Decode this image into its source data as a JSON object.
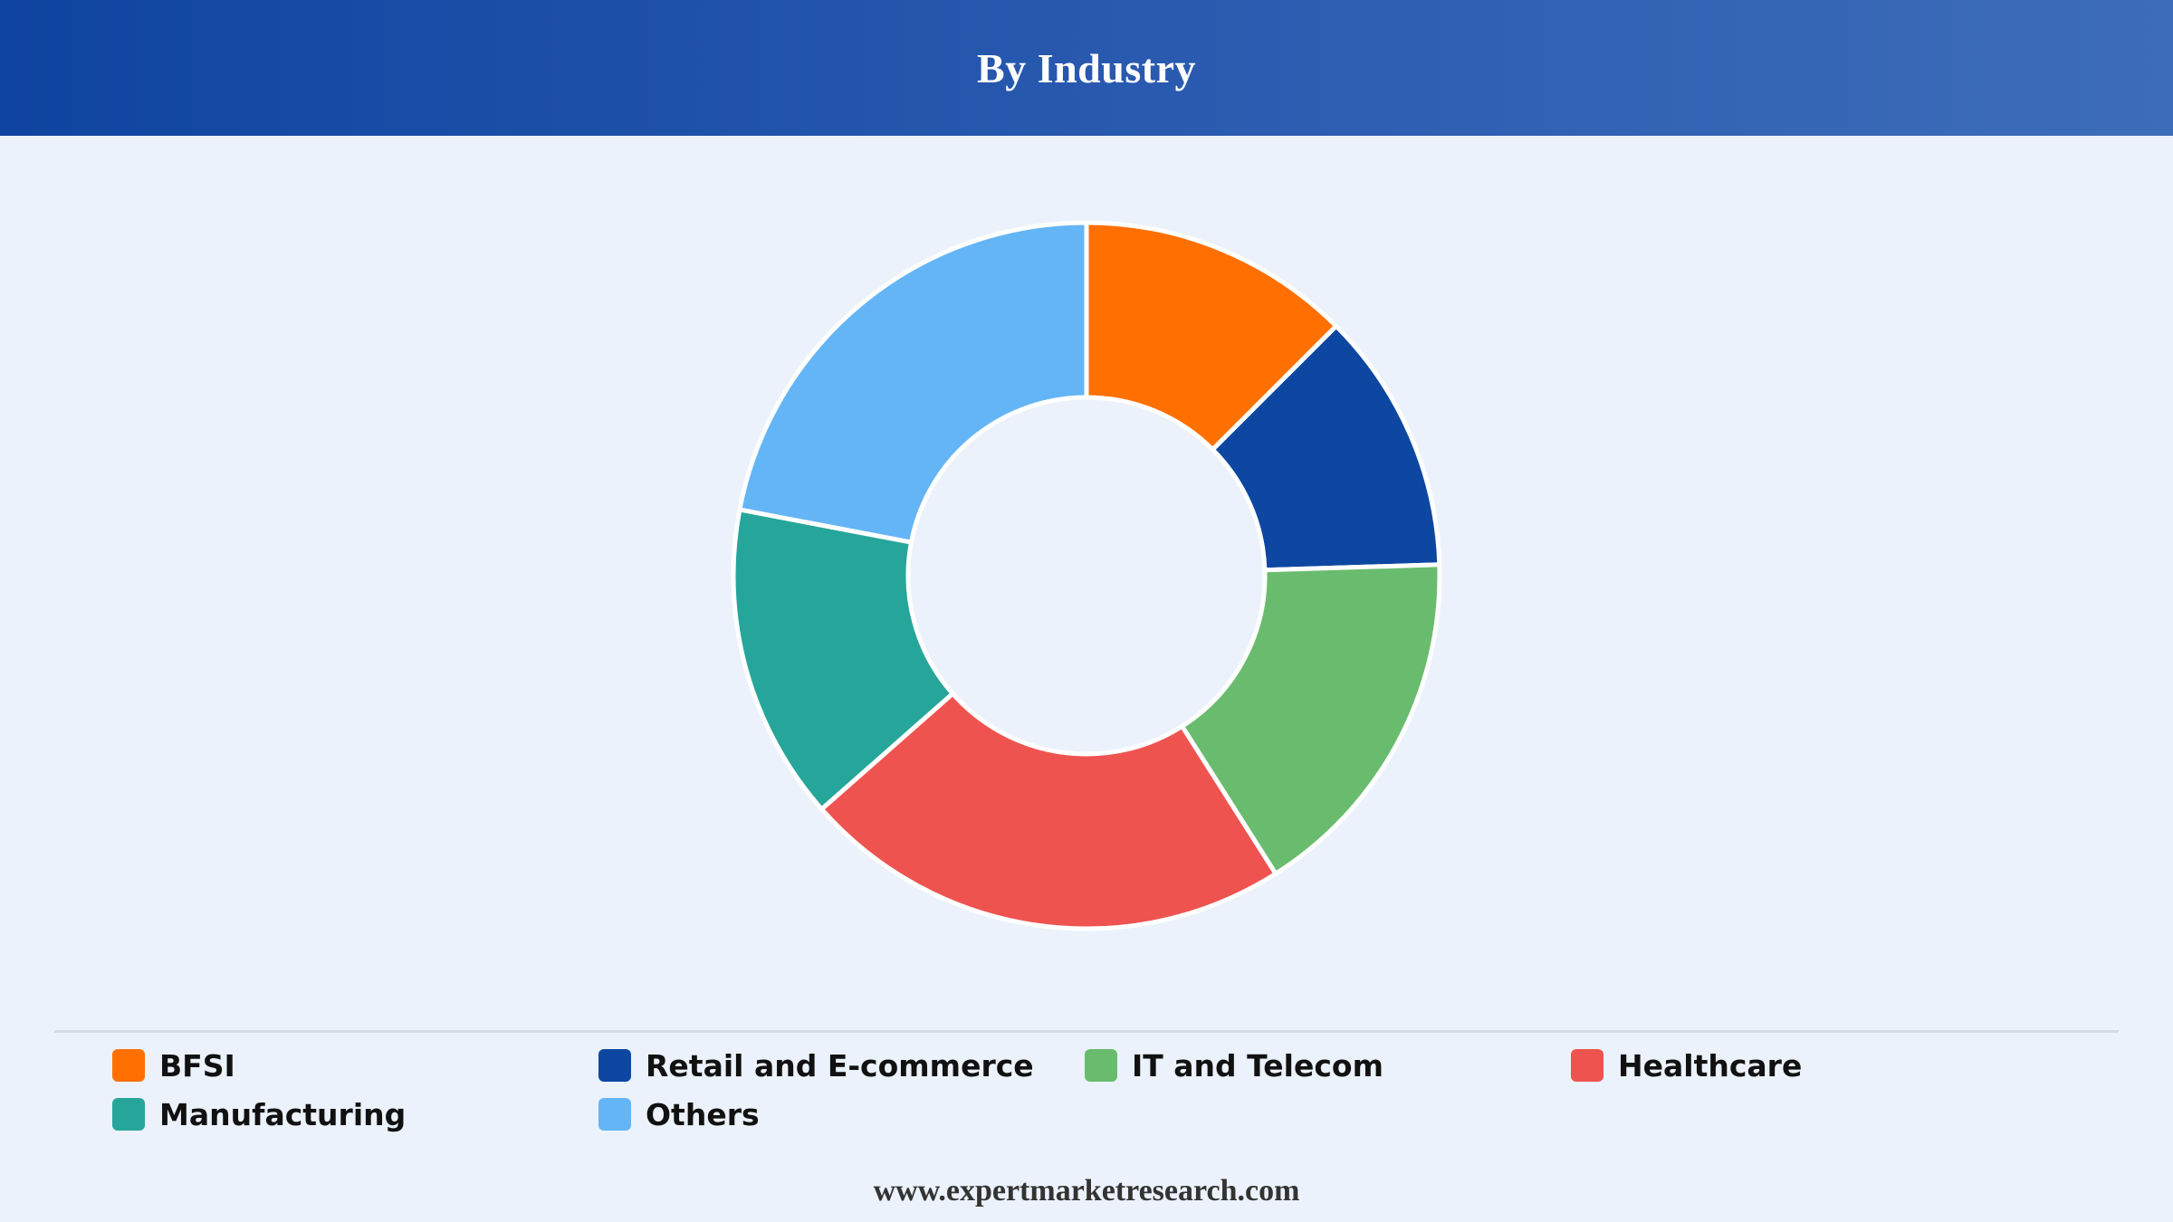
{
  "header": {
    "title": "By Industry"
  },
  "footer": {
    "url": "www.expertmarketresearch.com"
  },
  "chart_data": {
    "type": "pie",
    "donut": true,
    "title": "By Industry",
    "legend_position": "bottom",
    "categories": [
      "BFSI",
      "Retail and E-commerce",
      "IT and Telecom",
      "Healthcare",
      "Manufacturing",
      "Others"
    ],
    "values": [
      12.5,
      12,
      16.5,
      22.5,
      14.5,
      22
    ],
    "colors": [
      "#ff7000",
      "#0d47a1",
      "#69bc6e",
      "#ef5350",
      "#26a69a",
      "#64b5f6"
    ]
  }
}
